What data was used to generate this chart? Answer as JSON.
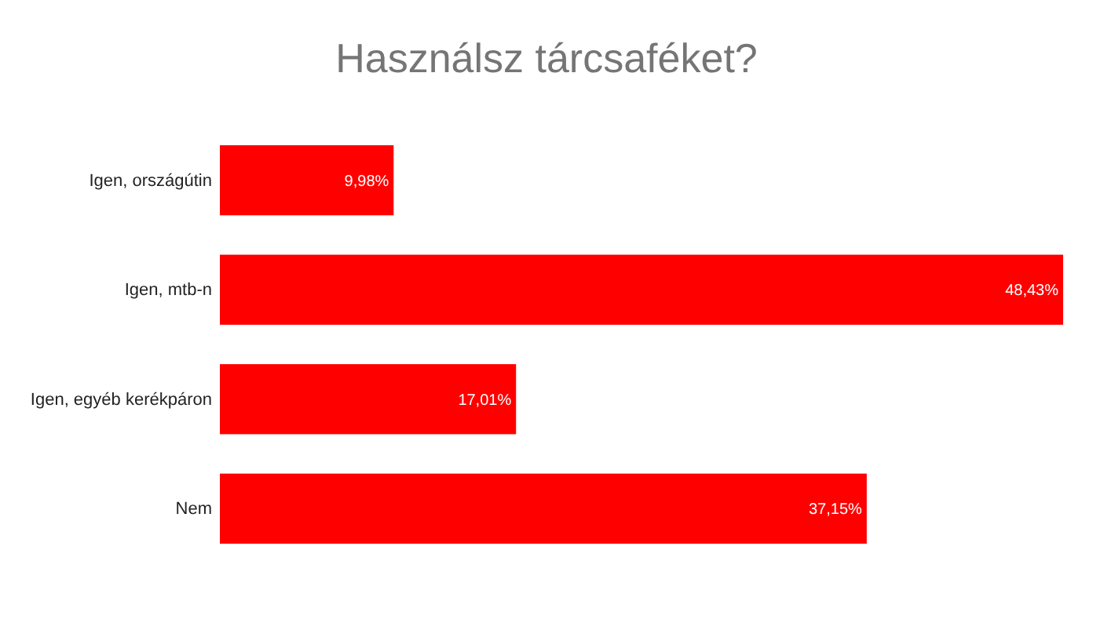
{
  "chart_data": {
    "type": "bar",
    "orientation": "horizontal",
    "title": "Használsz tárcsaféket?",
    "categories": [
      "Igen, országútin",
      "Igen, mtb-n",
      "Igen, egyéb kerékpáron",
      "Nem"
    ],
    "values": [
      9.98,
      48.43,
      17.01,
      37.15
    ],
    "value_labels": [
      "9,98%",
      "48,43%",
      "17,01%",
      "37,15%"
    ],
    "color": "#ff0000"
  }
}
